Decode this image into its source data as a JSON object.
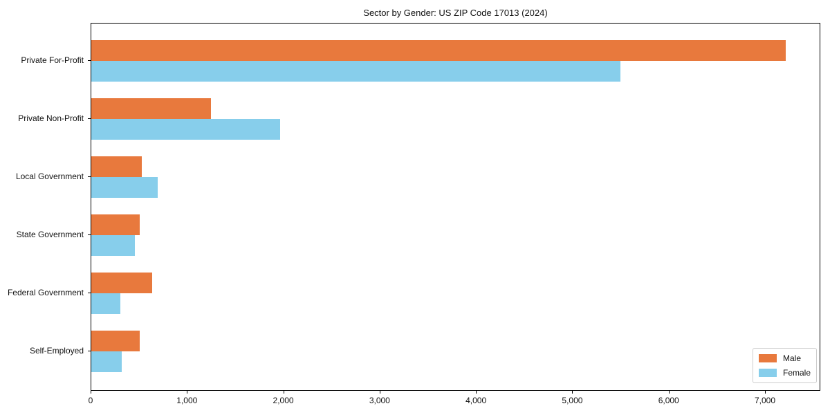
{
  "chart_data": {
    "type": "bar",
    "orientation": "horizontal",
    "title": "Sector by Gender: US ZIP Code 17013 (2024)",
    "categories": [
      "Private For-Profit",
      "Private Non-Profit",
      "Local Government",
      "State Government",
      "Federal Government",
      "Self-Employed"
    ],
    "series": [
      {
        "name": "Male",
        "color": "#E8793D",
        "values": [
          7210,
          1240,
          525,
          500,
          635,
          500
        ]
      },
      {
        "name": "Female",
        "color": "#87CEEB",
        "values": [
          5490,
          1960,
          690,
          455,
          305,
          315
        ]
      }
    ],
    "xlabel": "",
    "ylabel": "",
    "xlim": [
      0,
      7560
    ],
    "x_ticks": [
      0,
      1000,
      2000,
      3000,
      4000,
      5000,
      6000,
      7000
    ],
    "x_tick_labels": [
      "0",
      "1,000",
      "2,000",
      "3,000",
      "4,000",
      "5,000",
      "6,000",
      "7,000"
    ],
    "grid": false,
    "legend": {
      "position": "lower right",
      "entries": [
        "Male",
        "Female"
      ]
    }
  }
}
